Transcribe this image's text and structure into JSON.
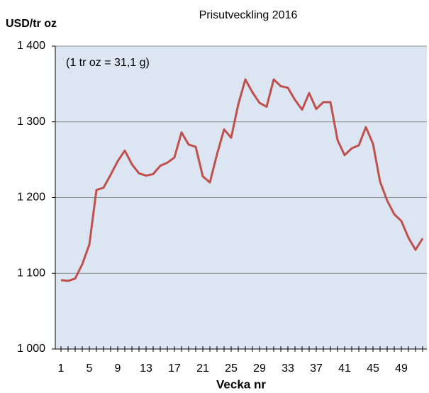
{
  "chart_data": {
    "type": "line",
    "title": "Prisutveckling 2016",
    "ylabel": "USD/tr oz",
    "xlabel": "Vecka nr",
    "annotation": "(1 tr oz = 31,1 g)",
    "x": [
      1,
      2,
      3,
      4,
      5,
      6,
      7,
      8,
      9,
      10,
      11,
      12,
      13,
      14,
      15,
      16,
      17,
      18,
      19,
      20,
      21,
      22,
      23,
      24,
      25,
      26,
      27,
      28,
      29,
      30,
      31,
      32,
      33,
      34,
      35,
      36,
      37,
      38,
      39,
      40,
      41,
      42,
      43,
      44,
      45,
      46,
      47,
      48,
      49,
      50,
      51,
      52
    ],
    "series": [
      {
        "name": "Prisutveckling 2016",
        "color": "#c0504d",
        "values": [
          1091,
          1090,
          1093,
          1112,
          1138,
          1210,
          1213,
          1230,
          1248,
          1262,
          1244,
          1232,
          1229,
          1231,
          1242,
          1246,
          1253,
          1286,
          1270,
          1267,
          1228,
          1220,
          1257,
          1290,
          1279,
          1323,
          1356,
          1339,
          1325,
          1320,
          1356,
          1347,
          1345,
          1329,
          1316,
          1338,
          1317,
          1326,
          1326,
          1276,
          1256,
          1265,
          1269,
          1293,
          1271,
          1221,
          1196,
          1178,
          1169,
          1147,
          1131,
          1146
        ]
      }
    ],
    "xlim": [
      0.2,
      52.6
    ],
    "xticks": [
      1,
      5,
      9,
      13,
      17,
      21,
      25,
      29,
      33,
      37,
      41,
      45,
      49
    ],
    "ylim": [
      1000,
      1400
    ],
    "yticks": [
      {
        "value": 1000,
        "label": "1 000"
      },
      {
        "value": 1100,
        "label": "1 100"
      },
      {
        "value": 1200,
        "label": "1 200"
      },
      {
        "value": 1300,
        "label": "1 300"
      },
      {
        "value": 1400,
        "label": "1 400"
      }
    ],
    "grid": true,
    "background": "#dce6f2"
  }
}
